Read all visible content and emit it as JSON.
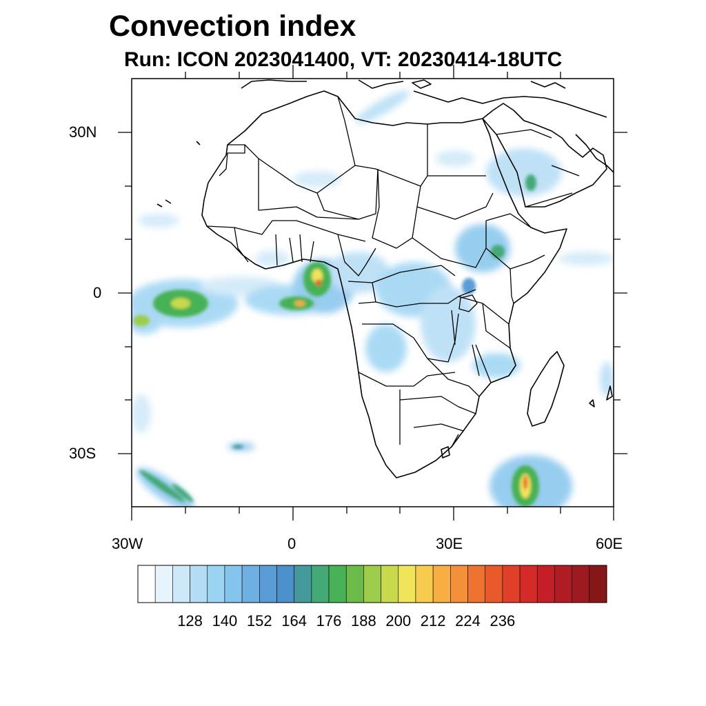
{
  "title": "Convection index",
  "subtitle": "Run: ICON 2023041400,  VT: 20230414-18UTC",
  "lat_labels": [
    "30N",
    "0",
    "30S"
  ],
  "lon_labels": [
    "30W",
    "0",
    "30E",
    "60E"
  ],
  "colorbar": {
    "tick_labels": [
      "128",
      "140",
      "152",
      "164",
      "176",
      "188",
      "200",
      "212",
      "224",
      "236"
    ],
    "colors": [
      "#ffffff",
      "#e8f4fc",
      "#cde8f8",
      "#b4dcf5",
      "#9bd3f3",
      "#85c4ec",
      "#6eb0e2",
      "#5a9dd6",
      "#4b8fcb",
      "#46999a",
      "#44a877",
      "#46b155",
      "#6cbb4a",
      "#9ccc4a",
      "#c8d94c",
      "#f0e45a",
      "#f7cc4e",
      "#f7ae43",
      "#f39039",
      "#ee7331",
      "#e85a2b",
      "#e04029",
      "#d42a28",
      "#c41f26",
      "#b01c23",
      "#9c1a20",
      "#861719"
    ]
  },
  "map_colors": {
    "land_border": "#000000",
    "light_blue": "#b4dcf5",
    "mid_blue": "#6eb0e2",
    "teal": "#46999a",
    "green": "#6cbb4a",
    "yellow": "#f0e45a",
    "orange": "#f39039",
    "red": "#d42a28"
  }
}
